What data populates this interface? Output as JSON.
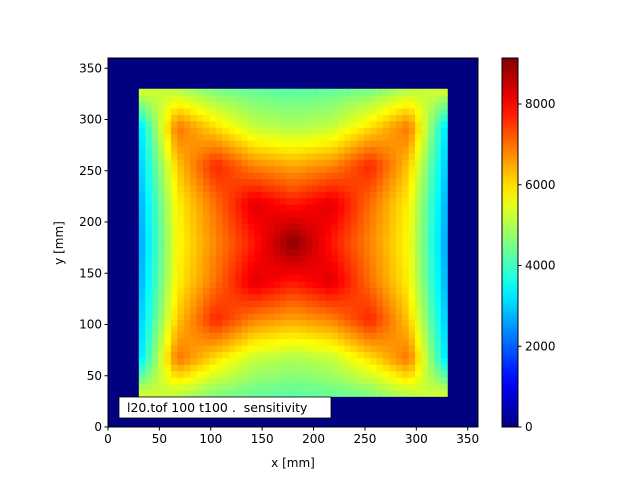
{
  "chart_data": {
    "type": "heatmap",
    "title": "",
    "xlabel": "x [mm]",
    "ylabel": "y [mm]",
    "xlim": [
      0,
      360
    ],
    "ylim": [
      0,
      360
    ],
    "xticks": [
      0,
      50,
      100,
      150,
      200,
      250,
      300,
      350
    ],
    "yticks": [
      0,
      50,
      100,
      150,
      200,
      250,
      300,
      350
    ],
    "colormap": "jet",
    "background_value": 0,
    "grid": false,
    "annotation": "l20.tof 100 t100 .  sensitivity",
    "colorbar": {
      "min": 0,
      "max": 9140,
      "ticks": [
        0,
        2000,
        4000,
        6000,
        8000
      ]
    },
    "field": {
      "x_range": [
        30,
        330
      ],
      "y_range": [
        30,
        330
      ],
      "x": [
        30,
        67.5,
        105,
        142.5,
        180,
        217.5,
        255,
        292.5,
        330
      ],
      "y": [
        330,
        292.5,
        255,
        217.5,
        180,
        142.5,
        105,
        67.5,
        30
      ],
      "values": [
        [
          5500,
          5000,
          4500,
          4300,
          4200,
          4300,
          4500,
          5000,
          5500
        ],
        [
          3000,
          7000,
          6000,
          5200,
          5000,
          5200,
          6000,
          7000,
          3000
        ],
        [
          2800,
          6200,
          7700,
          6800,
          6500,
          6800,
          7700,
          6200,
          2800
        ],
        [
          2600,
          5800,
          7000,
          8300,
          7800,
          8300,
          7000,
          5800,
          2600
        ],
        [
          2500,
          5700,
          6800,
          7800,
          9100,
          7800,
          6800,
          5700,
          2500
        ],
        [
          2600,
          5800,
          7000,
          8300,
          7800,
          8300,
          7000,
          5800,
          2600
        ],
        [
          2800,
          6200,
          7700,
          6800,
          6500,
          6800,
          7700,
          6200,
          2800
        ],
        [
          3000,
          7000,
          6000,
          5200,
          5000,
          5200,
          6000,
          7000,
          3000
        ],
        [
          5500,
          5000,
          4500,
          4300,
          4200,
          4300,
          4500,
          5000,
          5500
        ]
      ]
    }
  }
}
